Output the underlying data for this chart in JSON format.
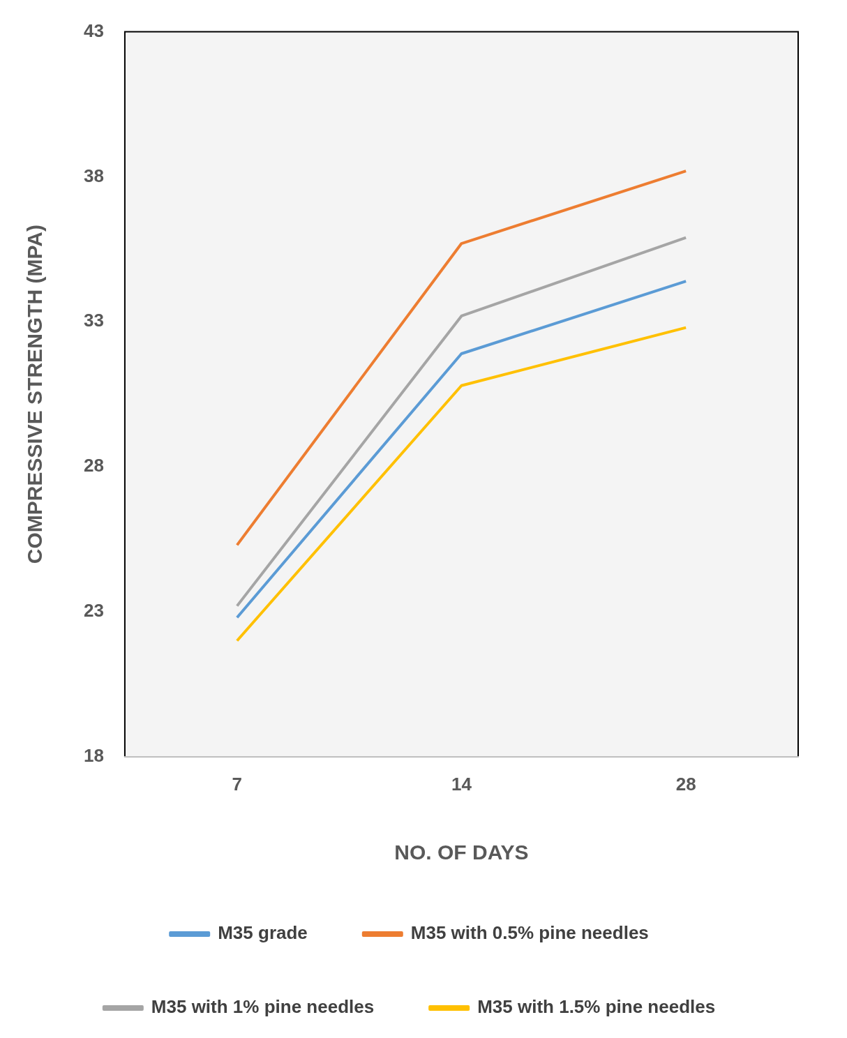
{
  "chart_data": {
    "type": "line",
    "xlabel": "NO. OF DAYS",
    "ylabel": "COMPRESSIVE STRENGTH (MPA)",
    "categories": [
      "7",
      "14",
      "28"
    ],
    "series": [
      {
        "name": "M35 grade",
        "color": "#5b9bd5",
        "values": [
          22.8,
          31.9,
          34.4
        ]
      },
      {
        "name": "M35 with 0.5% pine needles",
        "color": "#ed7d31",
        "values": [
          25.3,
          35.7,
          38.2
        ]
      },
      {
        "name": "M35 with 1% pine needles",
        "color": "#a5a5a5",
        "values": [
          23.2,
          33.2,
          35.9
        ]
      },
      {
        "name": "M35 with 1.5% pine needles",
        "color": "#ffc000",
        "values": [
          22.0,
          30.8,
          32.8
        ]
      }
    ],
    "ylim": [
      18,
      43
    ],
    "yticks": [
      18,
      23,
      28,
      33,
      38,
      43
    ],
    "grid": false,
    "legend": "bottom",
    "marker": "none",
    "line_style": "solid"
  }
}
